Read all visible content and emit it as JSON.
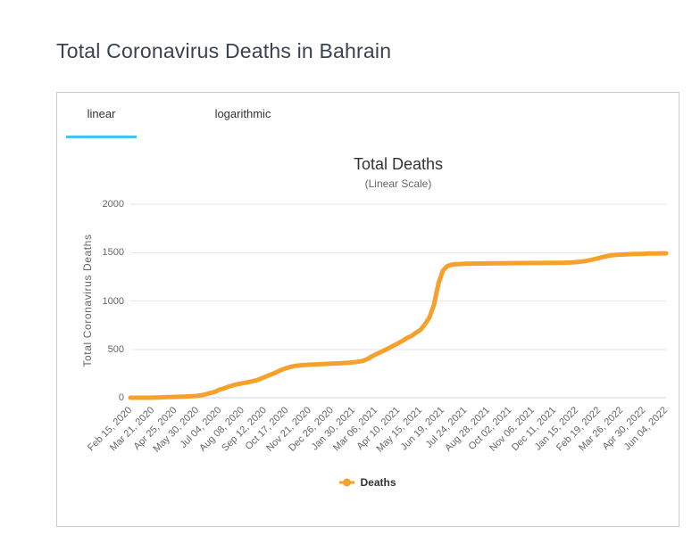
{
  "page": {
    "title": "Total Coronavirus Deaths in Bahrain"
  },
  "tabs": [
    {
      "label": "linear",
      "active": true
    },
    {
      "label": "logarithmic",
      "active": false
    }
  ],
  "theme": {
    "accent": "#46c5f0"
  },
  "chart_data": {
    "type": "line",
    "title": "Total Deaths",
    "subtitle": "(Linear Scale)",
    "ylabel": "Total Coronavirus Deaths",
    "ylim": [
      0,
      2000
    ],
    "yticks": [
      0,
      500,
      1000,
      1500,
      2000
    ],
    "grid": "horizontal-only",
    "legend": {
      "label": "Deaths",
      "position": "bottom"
    },
    "x_categories": [
      "Feb 15, 2020",
      "Mar 21, 2020",
      "Apr 25, 2020",
      "May 30, 2020",
      "Jul 04, 2020",
      "Aug 08, 2020",
      "Sep 12, 2020",
      "Oct 17, 2020",
      "Nov 21, 2020",
      "Dec 26, 2020",
      "Jan 30, 2021",
      "Mar 06, 2021",
      "Apr 10, 2021",
      "May 15, 2021",
      "Jun 19, 2021",
      "Jul 24, 2021",
      "Aug 28, 2021",
      "Oct 02, 2021",
      "Nov 06, 2021",
      "Dec 11, 2021",
      "Jan 15, 2022",
      "Feb 19, 2022",
      "Mar 26, 2022",
      "Apr 30, 2022",
      "Jun 04, 2022"
    ],
    "x_span_days": 840,
    "tick_interval_days": 35,
    "colors": {
      "series": "#f8a02c",
      "gridline": "#e6e6e6",
      "axis_line": "#ccd6eb",
      "tick_label": "#666666"
    },
    "series": [
      {
        "name": "Deaths",
        "color": "#f8a02c",
        "points": [
          [
            0,
            0
          ],
          [
            14,
            0
          ],
          [
            28,
            0
          ],
          [
            35,
            1
          ],
          [
            42,
            2
          ],
          [
            49,
            4
          ],
          [
            56,
            6
          ],
          [
            63,
            7
          ],
          [
            70,
            8
          ],
          [
            77,
            10
          ],
          [
            84,
            12
          ],
          [
            91,
            14
          ],
          [
            98,
            16
          ],
          [
            105,
            19
          ],
          [
            112,
            26
          ],
          [
            119,
            37
          ],
          [
            126,
            50
          ],
          [
            133,
            62
          ],
          [
            140,
            85
          ],
          [
            147,
            97
          ],
          [
            154,
            114
          ],
          [
            161,
            128
          ],
          [
            168,
            140
          ],
          [
            175,
            148
          ],
          [
            182,
            157
          ],
          [
            189,
            167
          ],
          [
            196,
            178
          ],
          [
            203,
            193
          ],
          [
            210,
            212
          ],
          [
            217,
            230
          ],
          [
            224,
            250
          ],
          [
            231,
            270
          ],
          [
            238,
            290
          ],
          [
            245,
            307
          ],
          [
            252,
            320
          ],
          [
            259,
            330
          ],
          [
            266,
            334
          ],
          [
            273,
            338
          ],
          [
            280,
            341
          ],
          [
            287,
            344
          ],
          [
            294,
            346
          ],
          [
            301,
            348
          ],
          [
            308,
            350
          ],
          [
            315,
            352
          ],
          [
            322,
            354
          ],
          [
            329,
            356
          ],
          [
            336,
            359
          ],
          [
            343,
            362
          ],
          [
            350,
            366
          ],
          [
            357,
            372
          ],
          [
            364,
            380
          ],
          [
            371,
            398
          ],
          [
            378,
            425
          ],
          [
            385,
            449
          ],
          [
            392,
            470
          ],
          [
            399,
            492
          ],
          [
            406,
            515
          ],
          [
            413,
            540
          ],
          [
            420,
            562
          ],
          [
            427,
            590
          ],
          [
            434,
            618
          ],
          [
            441,
            640
          ],
          [
            448,
            672
          ],
          [
            455,
            702
          ],
          [
            462,
            760
          ],
          [
            469,
            830
          ],
          [
            476,
            960
          ],
          [
            483,
            1180
          ],
          [
            490,
            1313
          ],
          [
            497,
            1360
          ],
          [
            504,
            1375
          ],
          [
            511,
            1380
          ],
          [
            518,
            1382
          ],
          [
            525,
            1384
          ],
          [
            539,
            1386
          ],
          [
            553,
            1387
          ],
          [
            560,
            1388
          ],
          [
            574,
            1389
          ],
          [
            588,
            1390
          ],
          [
            595,
            1391
          ],
          [
            609,
            1392
          ],
          [
            623,
            1392
          ],
          [
            630,
            1393
          ],
          [
            644,
            1393
          ],
          [
            658,
            1394
          ],
          [
            665,
            1394
          ],
          [
            679,
            1395
          ],
          [
            693,
            1398
          ],
          [
            700,
            1402
          ],
          [
            707,
            1407
          ],
          [
            714,
            1413
          ],
          [
            721,
            1422
          ],
          [
            728,
            1433
          ],
          [
            735,
            1444
          ],
          [
            742,
            1456
          ],
          [
            749,
            1466
          ],
          [
            756,
            1473
          ],
          [
            763,
            1477
          ],
          [
            770,
            1479
          ],
          [
            777,
            1481
          ],
          [
            784,
            1484
          ],
          [
            791,
            1486
          ],
          [
            798,
            1487
          ],
          [
            805,
            1488
          ],
          [
            812,
            1490
          ],
          [
            819,
            1491
          ],
          [
            826,
            1491
          ],
          [
            833,
            1492
          ],
          [
            840,
            1492
          ]
        ]
      }
    ]
  }
}
